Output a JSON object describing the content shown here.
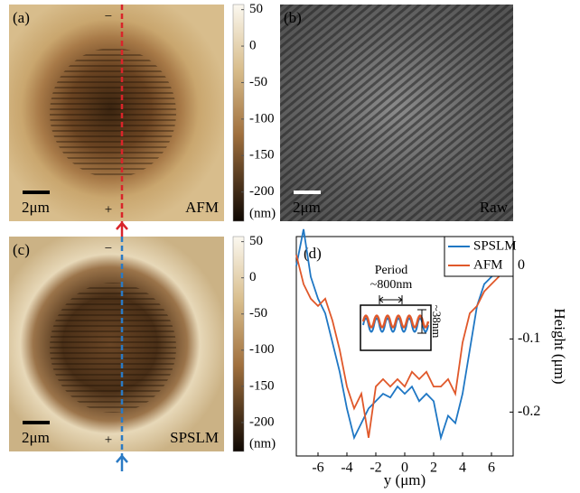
{
  "panels": [
    {
      "label": "(a)",
      "scale_bar": "2μm",
      "name": "AFM",
      "minus": "−",
      "plus": "+"
    },
    {
      "label": "(b)",
      "scale_bar": "2μm",
      "name": "Raw"
    },
    {
      "label": "(c)",
      "scale_bar": "2μm",
      "name": "SPSLM",
      "minus": "−",
      "plus": "+"
    }
  ],
  "colorbar": {
    "lim": [
      57,
      -240
    ],
    "ticks": [
      50,
      0,
      -50,
      -100,
      -150,
      -200
    ],
    "unit": "(nm)"
  },
  "chart_data": {
    "type": "line",
    "label": "(d)",
    "xlabel": "y (μm)",
    "ylabel": "Height (μm)",
    "xlim": [
      -7.5,
      7.5
    ],
    "ylim": [
      -0.26,
      0.04
    ],
    "xticks": [
      -6,
      -4,
      -2,
      0,
      2,
      4,
      6
    ],
    "yticks": [
      0,
      -0.1,
      -0.2
    ],
    "legend": "upper right",
    "x": [
      -7.5,
      -7,
      -6.5,
      -6,
      -5.5,
      -5,
      -4.5,
      -4,
      -3.5,
      -3,
      -2.5,
      -2,
      -1.5,
      -1,
      -0.5,
      0,
      0.5,
      1,
      1.5,
      2,
      2.5,
      3,
      3.5,
      4,
      4.5,
      5,
      5.5,
      6,
      6.5,
      7,
      7.5
    ],
    "series": [
      {
        "name": "SPSLM",
        "color": "#1f77c4",
        "values": [
          0,
          0.05,
          -0.015,
          -0.045,
          -0.065,
          -0.105,
          -0.145,
          -0.195,
          -0.235,
          -0.215,
          -0.195,
          -0.185,
          -0.175,
          -0.18,
          -0.165,
          -0.175,
          -0.165,
          -0.185,
          -0.175,
          -0.185,
          -0.235,
          -0.205,
          -0.215,
          -0.175,
          -0.115,
          -0.055,
          -0.025,
          -0.015,
          -0.005,
          0.005,
          0.01
        ]
      },
      {
        "name": "AFM",
        "color": "#e0582a",
        "values": [
          0.015,
          -0.025,
          -0.045,
          -0.055,
          -0.045,
          -0.075,
          -0.115,
          -0.165,
          -0.195,
          -0.175,
          -0.235,
          -0.165,
          -0.155,
          -0.165,
          -0.155,
          -0.165,
          -0.145,
          -0.155,
          -0.145,
          -0.165,
          -0.165,
          -0.155,
          -0.175,
          -0.105,
          -0.065,
          -0.055,
          -0.035,
          -0.025,
          -0.015,
          0,
          0.01
        ]
      }
    ],
    "annotations": [
      "Period",
      "~800nm",
      "~38nm"
    ]
  }
}
